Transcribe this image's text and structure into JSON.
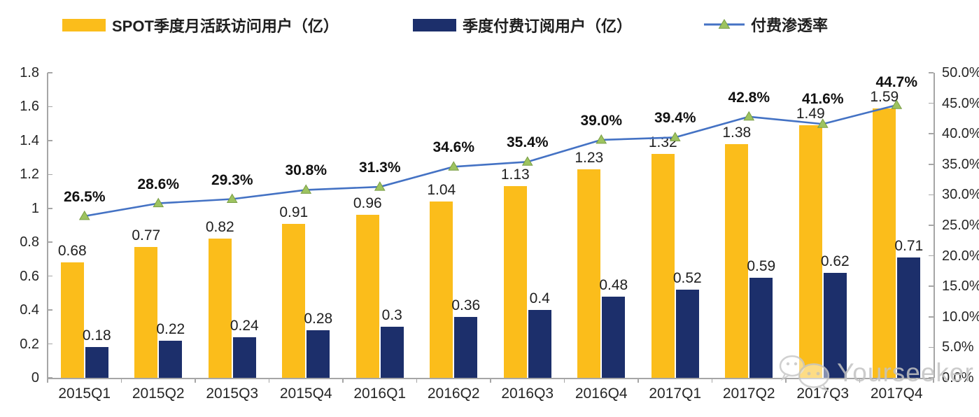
{
  "colors": {
    "mau_bar": "#FBBD1B",
    "paid_bar": "#1C2F6B",
    "line": "#4472C4",
    "marker_fill": "#9DC360",
    "marker_stroke": "#7A9E45",
    "axis": "#A6A6A6",
    "text": "#1F1F1F",
    "watermark": "#C3C3C3"
  },
  "chart_data": {
    "type": "bar",
    "subtype": "combo-bar-line-dual-axis",
    "categories": [
      "2015Q1",
      "2015Q2",
      "2015Q3",
      "2015Q4",
      "2016Q1",
      "2016Q2",
      "2016Q3",
      "2016Q4",
      "2017Q1",
      "2017Q2",
      "2017Q3",
      "2017Q4"
    ],
    "series": [
      {
        "name": "SPOT季度月活跃访问用户（亿）",
        "type": "bar",
        "axis": "left",
        "color": "#FBBD1B",
        "values": [
          0.68,
          0.77,
          0.82,
          0.91,
          0.96,
          1.04,
          1.13,
          1.23,
          1.32,
          1.38,
          1.49,
          1.59
        ],
        "labels": [
          "0.68",
          "0.77",
          "0.82",
          "0.91",
          "0.96",
          "1.04",
          "1.13",
          "1.23",
          "1.32",
          "1.38",
          "1.49",
          "1.59"
        ]
      },
      {
        "name": "季度付费订阅用户（亿）",
        "type": "bar",
        "axis": "left",
        "color": "#1C2F6B",
        "values": [
          0.18,
          0.22,
          0.24,
          0.28,
          0.3,
          0.36,
          0.4,
          0.48,
          0.52,
          0.59,
          0.62,
          0.71
        ],
        "labels": [
          "0.18",
          "0.22",
          "0.24",
          "0.28",
          "0.3",
          "0.36",
          "0.4",
          "0.48",
          "0.52",
          "0.59",
          "0.62",
          "0.71"
        ]
      },
      {
        "name": "付费渗透率",
        "type": "line",
        "axis": "right",
        "color": "#4472C4",
        "marker": "triangle",
        "values": [
          26.5,
          28.6,
          29.3,
          30.8,
          31.3,
          34.6,
          35.4,
          39.0,
          39.4,
          42.8,
          41.6,
          44.7
        ],
        "labels": [
          "26.5%",
          "28.6%",
          "29.3%",
          "30.8%",
          "31.3%",
          "34.6%",
          "35.4%",
          "39.0%",
          "39.4%",
          "42.8%",
          "41.6%",
          "44.7%"
        ]
      }
    ],
    "left_axis": {
      "min": 0,
      "max": 1.8,
      "tick_labels": [
        "1.8",
        "1.6",
        "1.4",
        "1.2",
        "1",
        "0.8",
        "0.6",
        "0.4",
        "0.2",
        "0"
      ]
    },
    "right_axis": {
      "min": 0,
      "max": 50,
      "tick_labels": [
        "50.0%",
        "45.0%",
        "40.0%",
        "35.0%",
        "30.0%",
        "25.0%",
        "20.0%",
        "15.0%",
        "10.0%",
        "5.0%",
        "0.0%"
      ]
    },
    "grid": false,
    "legend_position": "top"
  },
  "watermark": {
    "text": "Yourseeker"
  }
}
